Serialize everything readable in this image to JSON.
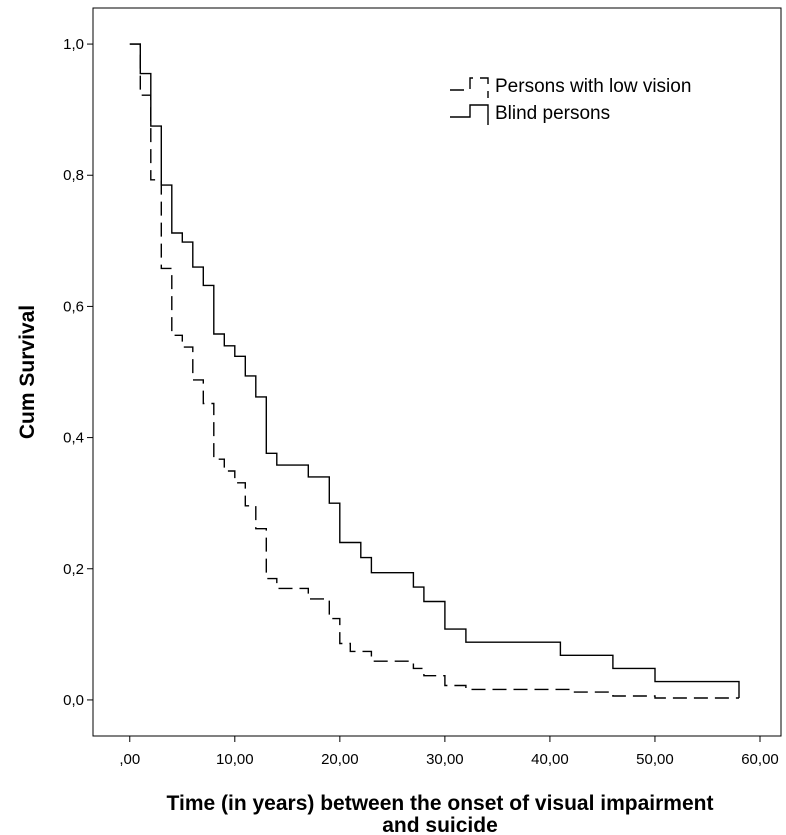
{
  "chart_data": {
    "type": "line",
    "subtype": "kaplan-meier step",
    "xlabel_lines": [
      "Time (in years) between the onset of visual impairment",
      "and suicide"
    ],
    "ylabel": "Cum Survival",
    "xlim": [
      -3.5,
      62
    ],
    "ylim": [
      -0.055,
      1.055
    ],
    "x_ticks": [
      0,
      10,
      20,
      30,
      40,
      50,
      60
    ],
    "x_tick_labels": [
      ",00",
      "10,00",
      "20,00",
      "30,00",
      "40,00",
      "50,00",
      "60,00"
    ],
    "y_ticks": [
      0,
      0.2,
      0.4,
      0.6,
      0.8,
      1.0
    ],
    "y_tick_labels": [
      "0,0",
      "0,2",
      "0,4",
      "0,6",
      "0,8",
      "1,0"
    ],
    "grid": false,
    "legend_position": "top-right",
    "series": [
      {
        "name": "Persons with low vision",
        "style": "dashed",
        "color": "#000000",
        "x": [
          0,
          1,
          2,
          3,
          4,
          5,
          6,
          7,
          8,
          9,
          10,
          11,
          12,
          13,
          14,
          17,
          19,
          20,
          21,
          23,
          26,
          27,
          28,
          30,
          32,
          42,
          46,
          50,
          58
        ],
        "y": [
          1.0,
          0.922,
          0.793,
          0.658,
          0.556,
          0.538,
          0.488,
          0.452,
          0.367,
          0.349,
          0.331,
          0.296,
          0.261,
          0.185,
          0.17,
          0.154,
          0.124,
          0.086,
          0.074,
          0.059,
          0.059,
          0.048,
          0.037,
          0.022,
          0.016,
          0.012,
          0.006,
          0.003,
          0.003
        ]
      },
      {
        "name": "Blind persons",
        "style": "solid",
        "color": "#000000",
        "x": [
          0,
          1,
          2,
          3,
          4,
          5,
          6,
          7,
          8,
          9,
          10,
          11,
          12,
          13,
          14,
          17,
          19,
          20,
          22,
          23,
          27,
          28,
          30,
          32,
          41,
          46,
          50,
          58
        ],
        "y": [
          1.0,
          0.955,
          0.875,
          0.785,
          0.712,
          0.698,
          0.66,
          0.632,
          0.558,
          0.54,
          0.524,
          0.494,
          0.462,
          0.376,
          0.358,
          0.34,
          0.3,
          0.24,
          0.217,
          0.194,
          0.172,
          0.15,
          0.108,
          0.088,
          0.068,
          0.048,
          0.028,
          0.003
        ]
      }
    ]
  }
}
